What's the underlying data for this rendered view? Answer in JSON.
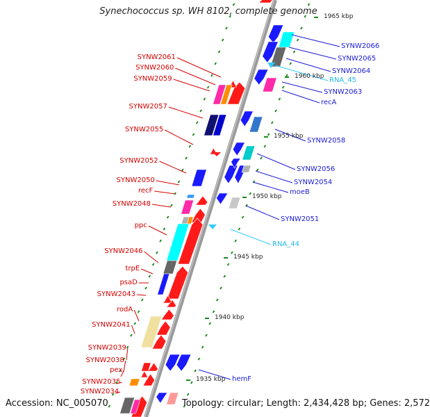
{
  "title": "Synechococcus sp. WH 8102, complete genome",
  "accession_text": "Accession: NC_005070",
  "summary_text": "Topology: circular; Length: 2,434,428 bp; Genes: 2,572",
  "colors": {
    "backbone": "#8a8a8a",
    "forward_strand": "#ff1a1a",
    "reverse_strand": "#1a1aff",
    "rna": "#33ccff",
    "tick": "#1a8a1a",
    "left_label": "#d40000",
    "right_label": "#1a1ad6"
  },
  "ticks": [
    {
      "label": "1965 kbp"
    },
    {
      "label": "1960 kbp"
    },
    {
      "label": "1955 kbp"
    },
    {
      "label": "1950 kbp"
    },
    {
      "label": "1945 kbp"
    },
    {
      "label": "1940 kbp"
    },
    {
      "label": "1935 kbp"
    }
  ],
  "left_labels": [
    {
      "text": "SYNW2061"
    },
    {
      "text": "SYNW2060"
    },
    {
      "text": "SYNW2059"
    },
    {
      "text": "SYNW2057"
    },
    {
      "text": "SYNW2055"
    },
    {
      "text": "SYNW2052"
    },
    {
      "text": "SYNW2050"
    },
    {
      "text": "recF"
    },
    {
      "text": "SYNW2048"
    },
    {
      "text": "ppc"
    },
    {
      "text": "SYNW2046"
    },
    {
      "text": "trpE"
    },
    {
      "text": "psaD"
    },
    {
      "text": "SYNW2043"
    },
    {
      "text": "rodA"
    },
    {
      "text": "SYNW2041"
    },
    {
      "text": "SYNW2039"
    },
    {
      "text": "SYNW2038"
    },
    {
      "text": "pex"
    },
    {
      "text": "SYNW2035"
    },
    {
      "text": "SYNW2034"
    }
  ],
  "right_labels": [
    {
      "text": "SYNW2066"
    },
    {
      "text": "SYNW2065"
    },
    {
      "text": "SYNW2064"
    },
    {
      "text": "RNA_45",
      "kind": "rna"
    },
    {
      "text": "SYNW2063"
    },
    {
      "text": "recA"
    },
    {
      "text": "SYNW2058"
    },
    {
      "text": "SYNW2056"
    },
    {
      "text": "SYNW2054"
    },
    {
      "text": "moeB"
    },
    {
      "text": "SYNW2051"
    },
    {
      "text": "RNA_44",
      "kind": "rna"
    },
    {
      "text": "hemF"
    }
  ]
}
